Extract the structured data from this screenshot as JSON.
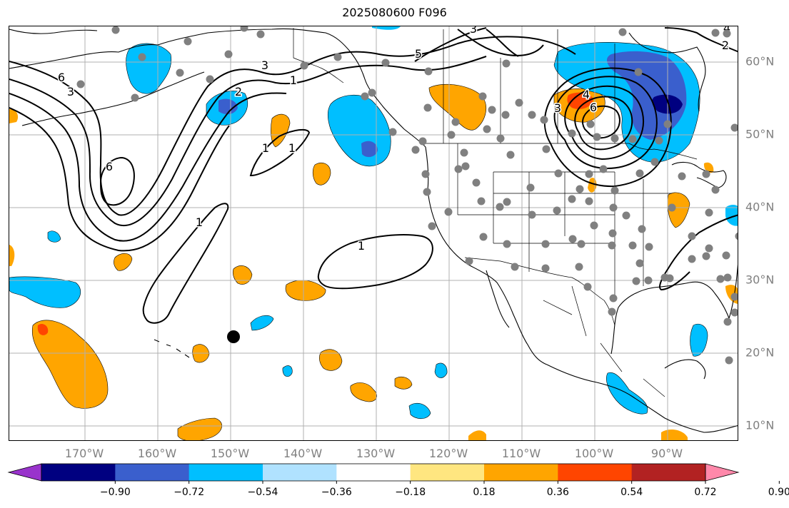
{
  "title": "2025080600 F096",
  "lon_labels": [
    "170°W",
    "160°W",
    "150°W",
    "140°W",
    "130°W",
    "120°W",
    "110°W",
    "100°W",
    "90°W"
  ],
  "lat_labels": [
    "60°N",
    "50°N",
    "40°N",
    "30°N",
    "20°N",
    "10°N"
  ],
  "contour_labels": [
    "6",
    "3",
    "2",
    "1",
    "1",
    "1",
    "1",
    "1",
    "6",
    "3",
    "4",
    "3",
    "3",
    "2",
    "5",
    "6",
    "4"
  ],
  "colorbar": {
    "ticks": [
      "−0.90",
      "−0.72",
      "−0.54",
      "−0.36",
      "−0.18",
      "0.18",
      "0.36",
      "0.54",
      "0.72",
      "0.90"
    ],
    "colors": [
      "#9933cc",
      "#000080",
      "#3a5fcd",
      "#00bfff",
      "#b0e2ff",
      "#ffffff",
      "#ffe680",
      "#ffa500",
      "#ff4500",
      "#b22222",
      "#ff88aa"
    ]
  },
  "colors": {
    "neg_strong": "#000080",
    "neg_mid": "#3a5fcd",
    "neg": "#00bfff",
    "pos": "#ffa500",
    "pos_mid": "#ff4500",
    "grid": "#b0b0b0",
    "station": "#808080"
  }
}
